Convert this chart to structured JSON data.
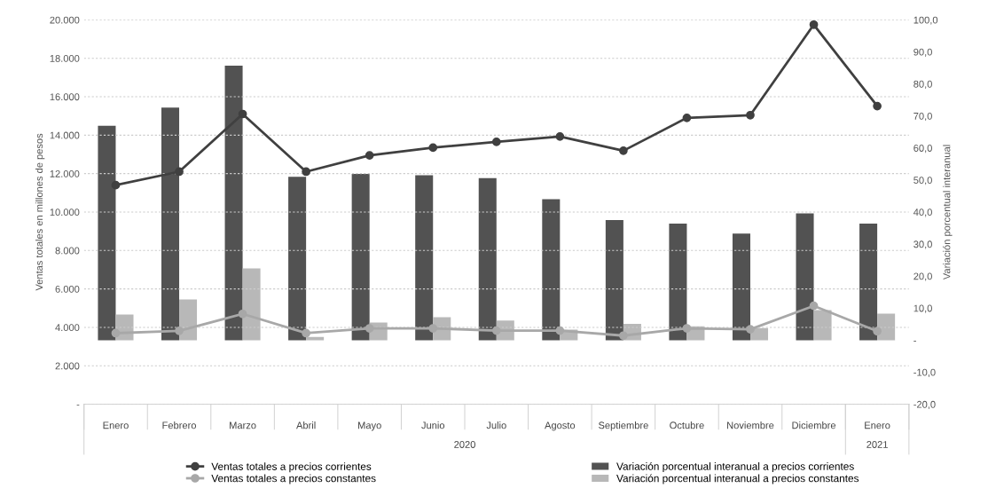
{
  "chart_data": {
    "type": "bar",
    "categories": [
      "Enero",
      "Febrero",
      "Marzo",
      "Abril",
      "Mayo",
      "Junio",
      "Julio",
      "Agosto",
      "Septiembre",
      "Octubre",
      "Noviembre",
      "Diciembre",
      "Enero"
    ],
    "ylabel": "Ventas totales en millones de pesos",
    "y2label": "Variación porcentual interanual",
    "series": [
      {
        "name": "Ventas totales a precios corrientes",
        "type": "line",
        "color": "#404040",
        "values": [
          11400,
          12100,
          15100,
          12100,
          12950,
          13350,
          13650,
          13930,
          13190,
          14900,
          15040,
          19750,
          15510
        ]
      },
      {
        "name": "Ventas totales a precios constantes",
        "type": "line",
        "color": "#a8a8a8",
        "values": [
          3700,
          3820,
          4700,
          3700,
          3950,
          3950,
          3830,
          3830,
          3570,
          3950,
          3900,
          5120,
          3800
        ]
      },
      {
        "name": "Variación porcentual interanual a precios corrientes",
        "axis": "y2",
        "color": "#525252",
        "values": [
          66.9,
          72.6,
          85.7,
          51.0,
          51.9,
          51.5,
          50.6,
          44.0,
          37.5,
          36.4,
          33.3,
          39.6,
          36.4
        ]
      },
      {
        "name": "Variación porcentual interanual a precios constantes",
        "axis": "y2",
        "color": "#b8b8b8",
        "values": [
          8.0,
          12.7,
          22.4,
          1.0,
          5.5,
          7.2,
          6.1,
          3.3,
          5.1,
          4.3,
          3.8,
          9.4,
          8.3
        ]
      }
    ],
    "ylim": [
      0,
      20000
    ],
    "yticks": [
      {
        "value": 0,
        "label": "-"
      },
      {
        "value": 2000,
        "label": "2.000"
      },
      {
        "value": 4000,
        "label": "4.000"
      },
      {
        "value": 6000,
        "label": "6.000"
      },
      {
        "value": 8000,
        "label": "8.000"
      },
      {
        "value": 10000,
        "label": "10.000"
      },
      {
        "value": 12000,
        "label": "12.000"
      },
      {
        "value": 14000,
        "label": "14.000"
      },
      {
        "value": 16000,
        "label": "16.000"
      },
      {
        "value": 18000,
        "label": "18.000"
      },
      {
        "value": 20000,
        "label": "20.000"
      }
    ],
    "y2lim": [
      -20,
      100
    ],
    "y2ticks": [
      {
        "value": -20,
        "label": "-20,0"
      },
      {
        "value": -10,
        "label": "-10,0"
      },
      {
        "value": 0,
        "label": "-"
      },
      {
        "value": 10,
        "label": "10,0"
      },
      {
        "value": 20,
        "label": "20,0"
      },
      {
        "value": 30,
        "label": "30,0"
      },
      {
        "value": 40,
        "label": "40,0"
      },
      {
        "value": 50,
        "label": "50,0"
      },
      {
        "value": 60,
        "label": "60,0"
      },
      {
        "value": 70,
        "label": "70,0"
      },
      {
        "value": 80,
        "label": "80,0"
      },
      {
        "value": 90,
        "label": "90,0"
      },
      {
        "value": 100,
        "label": "100,0"
      }
    ],
    "annotations": [
      "2020",
      "2021"
    ],
    "grid": "y",
    "legend": "bottom",
    "marker": "circle",
    "line_style": "solid"
  }
}
